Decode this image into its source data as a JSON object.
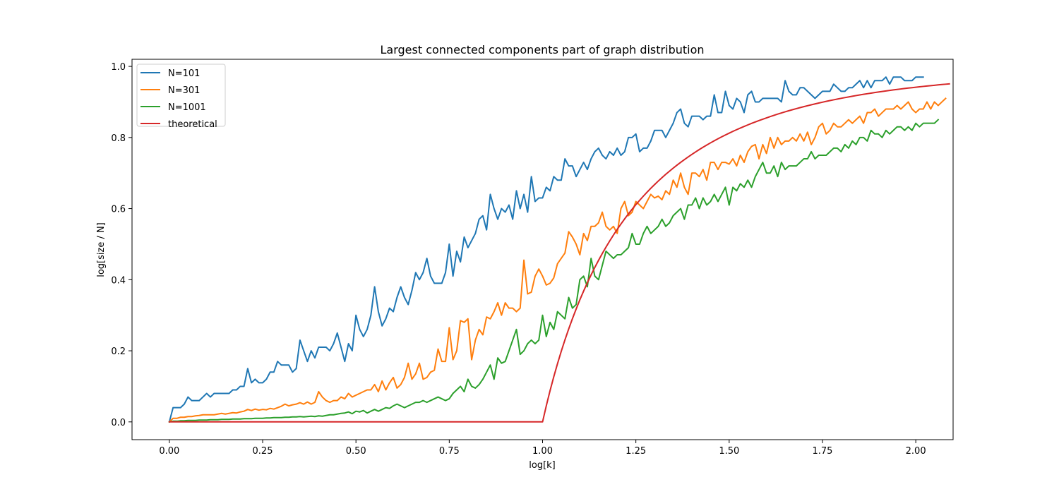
{
  "chart_data": {
    "type": "line",
    "title": "Largest connected components part of graph distribution",
    "xlabel": "log[k]",
    "ylabel": "log[size / N]",
    "xlim": [
      -0.1,
      2.1
    ],
    "ylim": [
      -0.05,
      1.02
    ],
    "xticks": [
      0.0,
      0.25,
      0.5,
      0.75,
      1.0,
      1.25,
      1.5,
      1.75,
      2.0
    ],
    "xtick_labels": [
      "0.00",
      "0.25",
      "0.50",
      "0.75",
      "1.00",
      "1.25",
      "1.50",
      "1.75",
      "2.00"
    ],
    "yticks": [
      0.0,
      0.2,
      0.4,
      0.6,
      0.8,
      1.0
    ],
    "ytick_labels": [
      "0.0",
      "0.2",
      "0.4",
      "0.6",
      "0.8",
      "1.0"
    ],
    "grid": false,
    "legend_position": "top-left",
    "x_sampling": {
      "start": 0.0,
      "end": 2.0,
      "count": 201
    },
    "series": [
      {
        "name": "N=101",
        "color": "#1f77b4",
        "values": [
          0.0,
          0.04,
          0.04,
          0.04,
          0.05,
          0.07,
          0.06,
          0.06,
          0.06,
          0.07,
          0.08,
          0.07,
          0.08,
          0.08,
          0.08,
          0.08,
          0.08,
          0.09,
          0.09,
          0.1,
          0.1,
          0.15,
          0.11,
          0.12,
          0.11,
          0.11,
          0.12,
          0.14,
          0.14,
          0.17,
          0.16,
          0.16,
          0.16,
          0.14,
          0.15,
          0.23,
          0.2,
          0.17,
          0.2,
          0.18,
          0.21,
          0.21,
          0.21,
          0.2,
          0.22,
          0.25,
          0.21,
          0.17,
          0.22,
          0.2,
          0.3,
          0.26,
          0.24,
          0.26,
          0.3,
          0.38,
          0.31,
          0.27,
          0.29,
          0.32,
          0.31,
          0.35,
          0.38,
          0.35,
          0.33,
          0.37,
          0.42,
          0.4,
          0.42,
          0.46,
          0.41,
          0.39,
          0.39,
          0.39,
          0.42,
          0.5,
          0.41,
          0.48,
          0.45,
          0.52,
          0.49,
          0.51,
          0.53,
          0.57,
          0.58,
          0.54,
          0.64,
          0.6,
          0.57,
          0.6,
          0.59,
          0.61,
          0.57,
          0.65,
          0.6,
          0.64,
          0.59,
          0.69,
          0.62,
          0.63,
          0.63,
          0.66,
          0.65,
          0.69,
          0.68,
          0.68,
          0.74,
          0.72,
          0.72,
          0.69,
          0.71,
          0.73,
          0.71,
          0.74,
          0.76,
          0.77,
          0.75,
          0.74,
          0.76,
          0.75,
          0.77,
          0.75,
          0.76,
          0.8,
          0.8,
          0.81,
          0.76,
          0.77,
          0.77,
          0.79,
          0.82,
          0.82,
          0.82,
          0.8,
          0.82,
          0.84,
          0.87,
          0.88,
          0.84,
          0.83,
          0.86,
          0.86,
          0.86,
          0.85,
          0.86,
          0.86,
          0.92,
          0.87,
          0.87,
          0.93,
          0.89,
          0.88,
          0.91,
          0.9,
          0.87,
          0.92,
          0.93,
          0.9,
          0.9,
          0.91,
          0.91,
          0.91,
          0.91,
          0.91,
          0.9,
          0.96,
          0.93,
          0.92,
          0.92,
          0.94,
          0.94,
          0.93,
          0.92,
          0.91,
          0.92,
          0.93,
          0.93,
          0.93,
          0.95,
          0.94,
          0.93,
          0.93,
          0.94,
          0.94,
          0.95,
          0.96,
          0.94,
          0.96,
          0.94,
          0.96,
          0.96,
          0.96,
          0.97,
          0.95,
          0.97,
          0.97,
          0.97,
          0.96,
          0.96,
          0.96,
          0.97,
          0.97,
          0.97
        ]
      },
      {
        "name": "N=301",
        "color": "#ff7f0e",
        "values": [
          0.0,
          0.01,
          0.01,
          0.013,
          0.013,
          0.015,
          0.015,
          0.017,
          0.018,
          0.02,
          0.02,
          0.02,
          0.02,
          0.022,
          0.024,
          0.022,
          0.024,
          0.026,
          0.025,
          0.028,
          0.03,
          0.035,
          0.032,
          0.036,
          0.033,
          0.035,
          0.034,
          0.038,
          0.036,
          0.04,
          0.044,
          0.05,
          0.045,
          0.048,
          0.05,
          0.054,
          0.05,
          0.056,
          0.05,
          0.055,
          0.085,
          0.07,
          0.06,
          0.055,
          0.06,
          0.06,
          0.07,
          0.065,
          0.08,
          0.07,
          0.075,
          0.08,
          0.085,
          0.09,
          0.09,
          0.105,
          0.085,
          0.115,
          0.09,
          0.11,
          0.125,
          0.095,
          0.105,
          0.125,
          0.165,
          0.12,
          0.135,
          0.165,
          0.12,
          0.125,
          0.14,
          0.145,
          0.205,
          0.17,
          0.17,
          0.265,
          0.175,
          0.2,
          0.285,
          0.28,
          0.29,
          0.175,
          0.23,
          0.26,
          0.245,
          0.295,
          0.29,
          0.31,
          0.335,
          0.3,
          0.335,
          0.32,
          0.32,
          0.31,
          0.32,
          0.455,
          0.36,
          0.365,
          0.41,
          0.43,
          0.41,
          0.385,
          0.39,
          0.405,
          0.445,
          0.46,
          0.475,
          0.535,
          0.52,
          0.5,
          0.47,
          0.53,
          0.51,
          0.55,
          0.55,
          0.56,
          0.59,
          0.55,
          0.54,
          0.55,
          0.53,
          0.6,
          0.62,
          0.58,
          0.59,
          0.62,
          0.61,
          0.6,
          0.62,
          0.64,
          0.63,
          0.635,
          0.625,
          0.65,
          0.64,
          0.68,
          0.66,
          0.7,
          0.66,
          0.64,
          0.7,
          0.7,
          0.69,
          0.71,
          0.68,
          0.73,
          0.73,
          0.71,
          0.73,
          0.73,
          0.725,
          0.74,
          0.72,
          0.75,
          0.73,
          0.76,
          0.775,
          0.78,
          0.74,
          0.78,
          0.755,
          0.8,
          0.77,
          0.8,
          0.78,
          0.79,
          0.79,
          0.8,
          0.79,
          0.81,
          0.79,
          0.815,
          0.78,
          0.8,
          0.83,
          0.84,
          0.81,
          0.82,
          0.84,
          0.83,
          0.83,
          0.84,
          0.85,
          0.84,
          0.85,
          0.86,
          0.84,
          0.87,
          0.87,
          0.88,
          0.86,
          0.87,
          0.88,
          0.88,
          0.88,
          0.89,
          0.88,
          0.89,
          0.9,
          0.88,
          0.87,
          0.88,
          0.88,
          0.9,
          0.88,
          0.9,
          0.89,
          0.9,
          0.91
        ]
      },
      {
        "name": "N=1001",
        "color": "#2ca02c",
        "values": [
          0.0,
          0.002,
          0.002,
          0.003,
          0.003,
          0.004,
          0.004,
          0.004,
          0.005,
          0.005,
          0.005,
          0.006,
          0.006,
          0.006,
          0.007,
          0.007,
          0.007,
          0.008,
          0.008,
          0.008,
          0.009,
          0.009,
          0.009,
          0.01,
          0.01,
          0.01,
          0.011,
          0.011,
          0.012,
          0.012,
          0.012,
          0.013,
          0.013,
          0.014,
          0.014,
          0.015,
          0.014,
          0.015,
          0.016,
          0.015,
          0.017,
          0.016,
          0.018,
          0.02,
          0.02,
          0.022,
          0.024,
          0.025,
          0.028,
          0.023,
          0.03,
          0.028,
          0.032,
          0.025,
          0.03,
          0.035,
          0.03,
          0.035,
          0.04,
          0.038,
          0.045,
          0.05,
          0.045,
          0.04,
          0.045,
          0.05,
          0.055,
          0.055,
          0.06,
          0.055,
          0.06,
          0.065,
          0.07,
          0.065,
          0.06,
          0.065,
          0.08,
          0.09,
          0.1,
          0.085,
          0.12,
          0.1,
          0.095,
          0.105,
          0.12,
          0.14,
          0.16,
          0.12,
          0.18,
          0.165,
          0.17,
          0.2,
          0.23,
          0.26,
          0.19,
          0.2,
          0.22,
          0.23,
          0.22,
          0.23,
          0.3,
          0.24,
          0.28,
          0.26,
          0.31,
          0.3,
          0.29,
          0.35,
          0.32,
          0.33,
          0.4,
          0.41,
          0.38,
          0.46,
          0.41,
          0.4,
          0.44,
          0.48,
          0.47,
          0.46,
          0.47,
          0.47,
          0.48,
          0.49,
          0.53,
          0.5,
          0.5,
          0.53,
          0.55,
          0.53,
          0.54,
          0.55,
          0.57,
          0.55,
          0.56,
          0.58,
          0.59,
          0.6,
          0.57,
          0.61,
          0.61,
          0.63,
          0.6,
          0.63,
          0.61,
          0.62,
          0.64,
          0.62,
          0.64,
          0.66,
          0.61,
          0.66,
          0.65,
          0.67,
          0.66,
          0.68,
          0.66,
          0.69,
          0.71,
          0.73,
          0.7,
          0.7,
          0.72,
          0.69,
          0.73,
          0.71,
          0.72,
          0.72,
          0.72,
          0.73,
          0.74,
          0.74,
          0.76,
          0.74,
          0.75,
          0.75,
          0.75,
          0.76,
          0.77,
          0.77,
          0.76,
          0.78,
          0.77,
          0.79,
          0.78,
          0.8,
          0.8,
          0.79,
          0.82,
          0.81,
          0.81,
          0.8,
          0.82,
          0.81,
          0.82,
          0.83,
          0.83,
          0.82,
          0.83,
          0.82,
          0.84,
          0.83,
          0.84,
          0.84,
          0.84,
          0.84,
          0.85
        ]
      },
      {
        "name": "theoretical",
        "color": "#d62728",
        "values": [
          0.0,
          0.0,
          0.0,
          0.0,
          0.0,
          0.0,
          0.0,
          0.0,
          0.0,
          0.0,
          0.0,
          0.0,
          0.0,
          0.0,
          0.0,
          0.0,
          0.0,
          0.0,
          0.0,
          0.0,
          0.0,
          0.0,
          0.0,
          0.0,
          0.0,
          0.0,
          0.0,
          0.0,
          0.0,
          0.0,
          0.0,
          0.0,
          0.0,
          0.0,
          0.0,
          0.0,
          0.0,
          0.0,
          0.0,
          0.0,
          0.0,
          0.0,
          0.0,
          0.0,
          0.0,
          0.0,
          0.0,
          0.0,
          0.0,
          0.0,
          0.0,
          0.0,
          0.0,
          0.0,
          0.0,
          0.0,
          0.0,
          0.0,
          0.0,
          0.0,
          0.0,
          0.0,
          0.0,
          0.0,
          0.0,
          0.0,
          0.0,
          0.0,
          0.0,
          0.0,
          0.0,
          0.0,
          0.0,
          0.0,
          0.0,
          0.0,
          0.0,
          0.0,
          0.0,
          0.0,
          0.0,
          0.0,
          0.0,
          0.0,
          0.0,
          0.0,
          0.0,
          0.0,
          0.0,
          0.0,
          0.0,
          0.0,
          0.0,
          0.0,
          0.0,
          0.0,
          0.0,
          0.0,
          0.0,
          0.0,
          0.0,
          0.0453,
          0.0874,
          0.1268,
          0.1636,
          0.1982,
          0.2307,
          0.2613,
          0.2902,
          0.3176,
          0.3435,
          0.368,
          0.3913,
          0.4135,
          0.4345,
          0.4545,
          0.4736,
          0.4918,
          0.5091,
          0.5257,
          0.5415,
          0.5566,
          0.5711,
          0.585,
          0.5983,
          0.611,
          0.6232,
          0.6349,
          0.6462,
          0.657,
          0.6674,
          0.6774,
          0.687,
          0.6963,
          0.7052,
          0.7138,
          0.7221,
          0.7301,
          0.7378,
          0.7452,
          0.7524,
          0.7594,
          0.7661,
          0.7726,
          0.7788,
          0.7849,
          0.7907,
          0.7964,
          0.8018,
          0.8071,
          0.8122,
          0.8172,
          0.822,
          0.8266,
          0.8311,
          0.8354,
          0.8397,
          0.8437,
          0.8477,
          0.8515,
          0.8552,
          0.8588,
          0.8623,
          0.8657,
          0.869,
          0.8722,
          0.8753,
          0.8783,
          0.8812,
          0.884,
          0.8867,
          0.8894,
          0.892,
          0.8945,
          0.8969,
          0.8993,
          0.9016,
          0.9038,
          0.906,
          0.9081,
          0.9102,
          0.9122,
          0.9141,
          0.916,
          0.9179,
          0.9197,
          0.9214,
          0.9231,
          0.9247,
          0.9264,
          0.9279,
          0.9294,
          0.9309,
          0.9324,
          0.9338,
          0.9351,
          0.9365,
          0.9378,
          0.939,
          0.9402,
          0.9414,
          0.9426,
          0.9437,
          0.9448,
          0.9459,
          0.9469,
          0.948,
          0.949,
          0.9499,
          0.9508
        ]
      }
    ]
  }
}
